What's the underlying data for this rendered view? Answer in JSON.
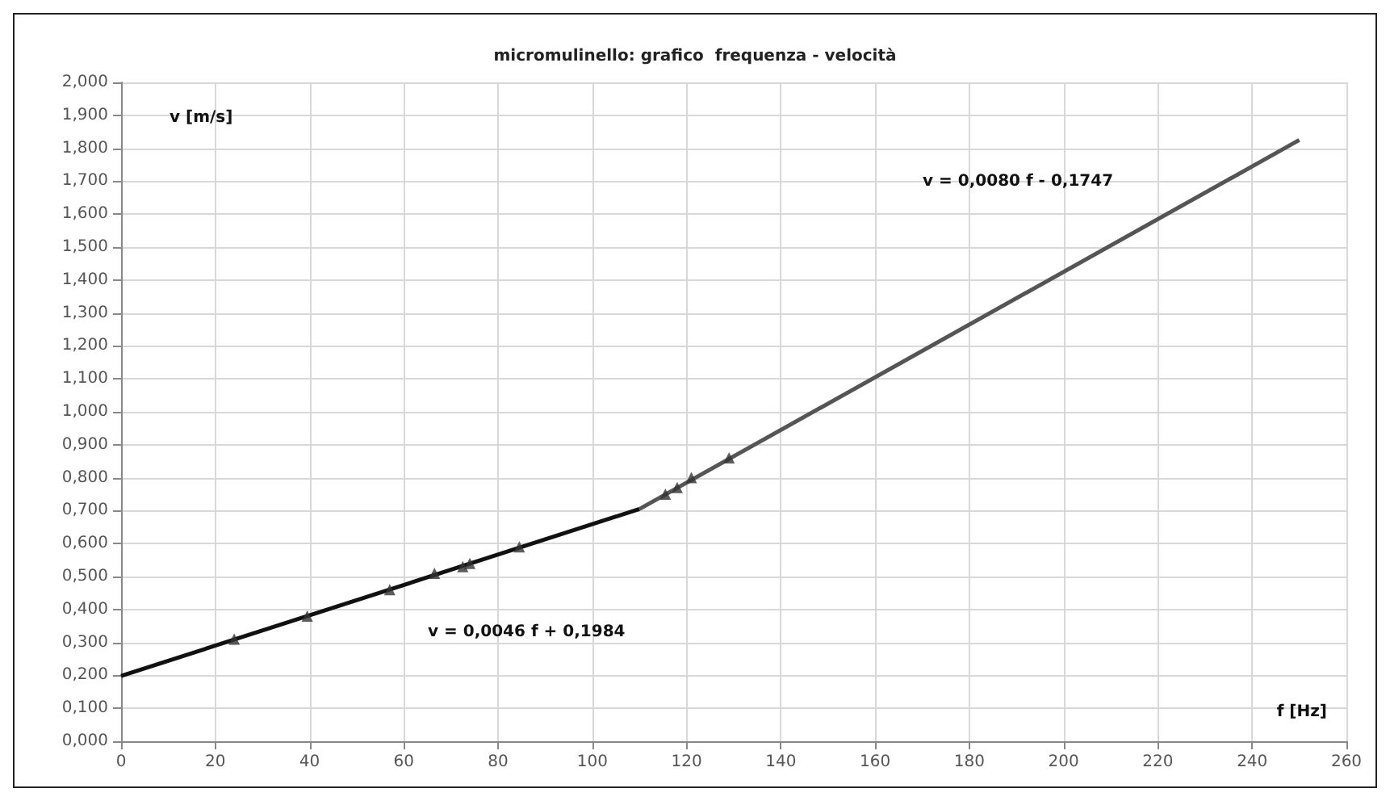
{
  "chart_data": {
    "type": "scatter",
    "title": "micromulinello: grafico  frequenza - velocità",
    "xlabel": "f [Hz]",
    "ylabel": "v [m/s]",
    "series": [
      {
        "color": "#333333",
        "marker": "triangle",
        "x": [
          24,
          39.5,
          57,
          66.5,
          72.5,
          74,
          84.5,
          115.5,
          118,
          121,
          129
        ],
        "values": [
          0.31,
          0.38,
          0.46,
          0.51,
          0.53,
          0.54,
          0.59,
          0.75,
          0.77,
          0.8,
          0.86
        ]
      },
      {
        "type": "line",
        "color": "#111111",
        "marker": "none",
        "x": [
          0,
          110
        ],
        "values": [
          0.198,
          0.705
        ]
      },
      {
        "type": "line",
        "color": "#555555",
        "marker": "none",
        "x": [
          110,
          250
        ],
        "values": [
          0.705,
          1.825
        ]
      }
    ],
    "annotations": [
      "v = 0,0046 f + 0,1984",
      "v = 0,0080 f - 0,1747"
    ],
    "xlim": [
      0,
      260
    ],
    "xticks": [
      0,
      20,
      40,
      60,
      80,
      100,
      120,
      140,
      160,
      180,
      200,
      220,
      240,
      260
    ],
    "ylim": [
      0,
      2
    ],
    "yticks": [
      {
        "value": 0,
        "label": "0,000"
      },
      {
        "value": 0.1,
        "label": "0,100"
      },
      {
        "value": 0.2,
        "label": "0,200"
      },
      {
        "value": 0.3,
        "label": "0,300"
      },
      {
        "value": 0.4,
        "label": "0,400"
      },
      {
        "value": 0.5,
        "label": "0,500"
      },
      {
        "value": 0.6,
        "label": "0,600"
      },
      {
        "value": 0.7,
        "label": "0,700"
      },
      {
        "value": 0.8,
        "label": "0,800"
      },
      {
        "value": 0.9,
        "label": "0,900"
      },
      {
        "value": 1,
        "label": "1,000"
      },
      {
        "value": 1.1,
        "label": "1,100"
      },
      {
        "value": 1.2,
        "label": "1,200"
      },
      {
        "value": 1.3,
        "label": "1,300"
      },
      {
        "value": 1.4,
        "label": "1,400"
      },
      {
        "value": 1.5,
        "label": "1,500"
      },
      {
        "value": 1.6,
        "label": "1,600"
      },
      {
        "value": 1.7,
        "label": "1,700"
      },
      {
        "value": 1.8,
        "label": "1,800"
      },
      {
        "value": 1.9,
        "label": "1,900"
      },
      {
        "value": 2,
        "label": "2,000"
      }
    ],
    "grid": true
  }
}
